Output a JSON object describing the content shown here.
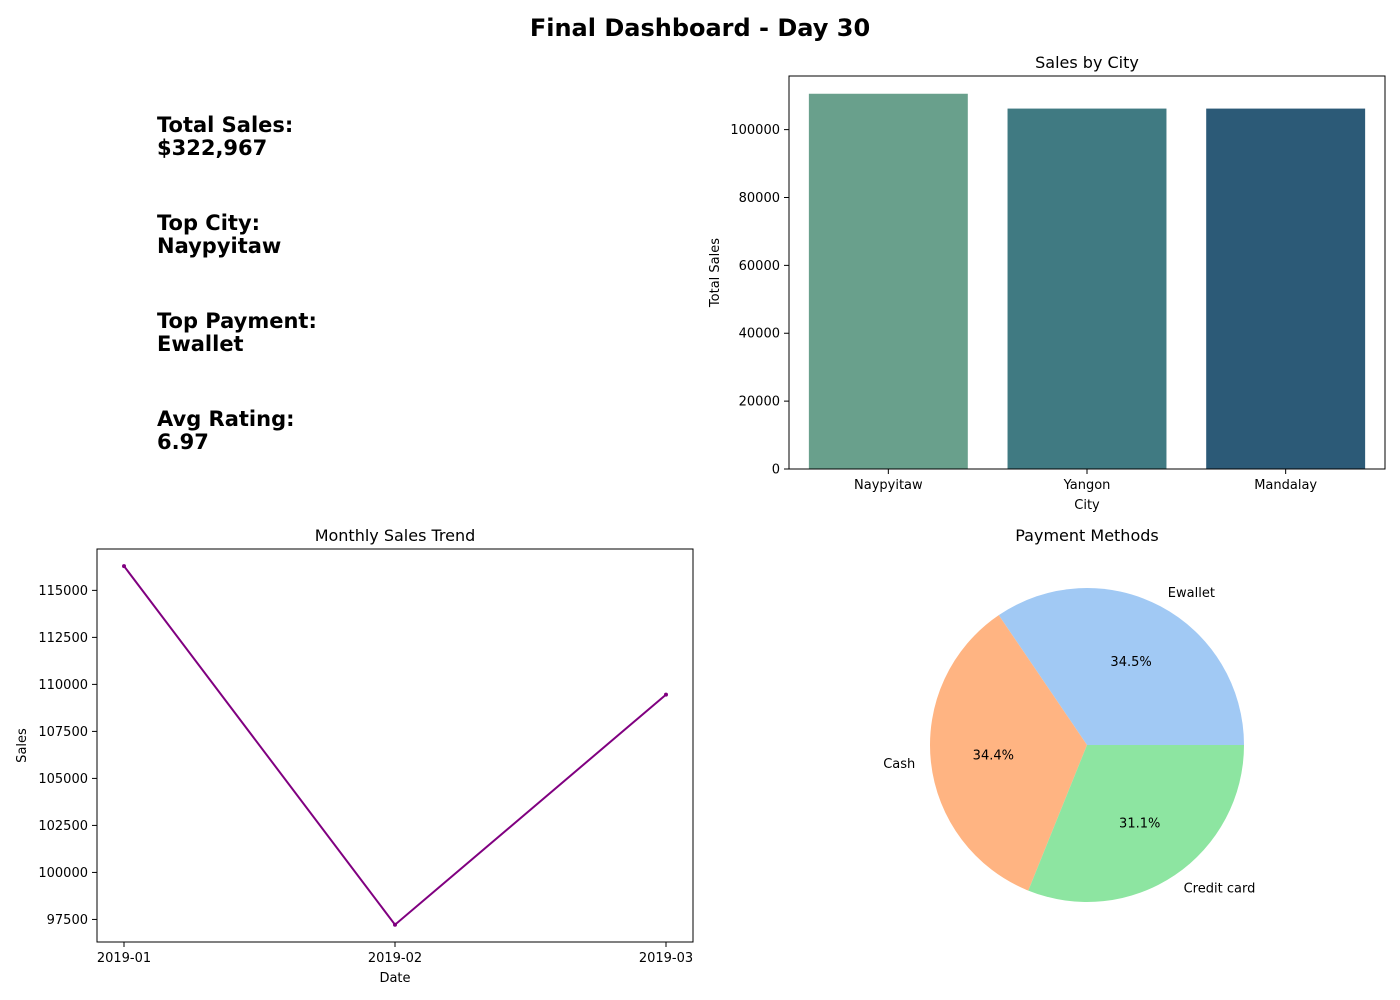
{
  "title": "Final Dashboard - Day 30",
  "kpis": [
    {
      "label": "Total Sales:",
      "value": "$322,967"
    },
    {
      "label": "Top City:",
      "value": "Naypyitaw"
    },
    {
      "label": "Top Payment:",
      "value": "Ewallet"
    },
    {
      "label": "Avg Rating:",
      "value": "6.97"
    }
  ],
  "chart_data": [
    {
      "type": "bar",
      "title": "Sales by City",
      "xlabel": "City",
      "ylabel": "Total Sales",
      "categories": [
        "Naypyitaw",
        "Yangon",
        "Mandalay"
      ],
      "values": [
        110568,
        106200,
        106198
      ],
      "ylim": [
        0,
        115800
      ],
      "yticks": [
        0,
        20000,
        40000,
        60000,
        80000,
        100000
      ],
      "colors": [
        "#69a08c",
        "#407a82",
        "#2c5a77"
      ],
      "grid": false
    },
    {
      "type": "line",
      "title": "Monthly Sales Trend",
      "xlabel": "Date",
      "ylabel": "Sales",
      "x": [
        "2019-01",
        "2019-02",
        "2019-03"
      ],
      "values": [
        116292,
        97219,
        109456
      ],
      "ylim": [
        96300,
        117200
      ],
      "yticks": [
        97500,
        100000,
        102500,
        105000,
        107500,
        110000,
        112500,
        115000
      ],
      "color": "#800080",
      "grid": false
    },
    {
      "type": "pie",
      "title": "Payment Methods",
      "labels": [
        "Ewallet",
        "Cash",
        "Credit card"
      ],
      "values": [
        34.5,
        34.4,
        31.1
      ],
      "autopct": [
        "34.5%",
        "34.4%",
        "31.1%"
      ],
      "colors": [
        "#a1c9f4",
        "#ffb482",
        "#8de5a1"
      ]
    }
  ]
}
